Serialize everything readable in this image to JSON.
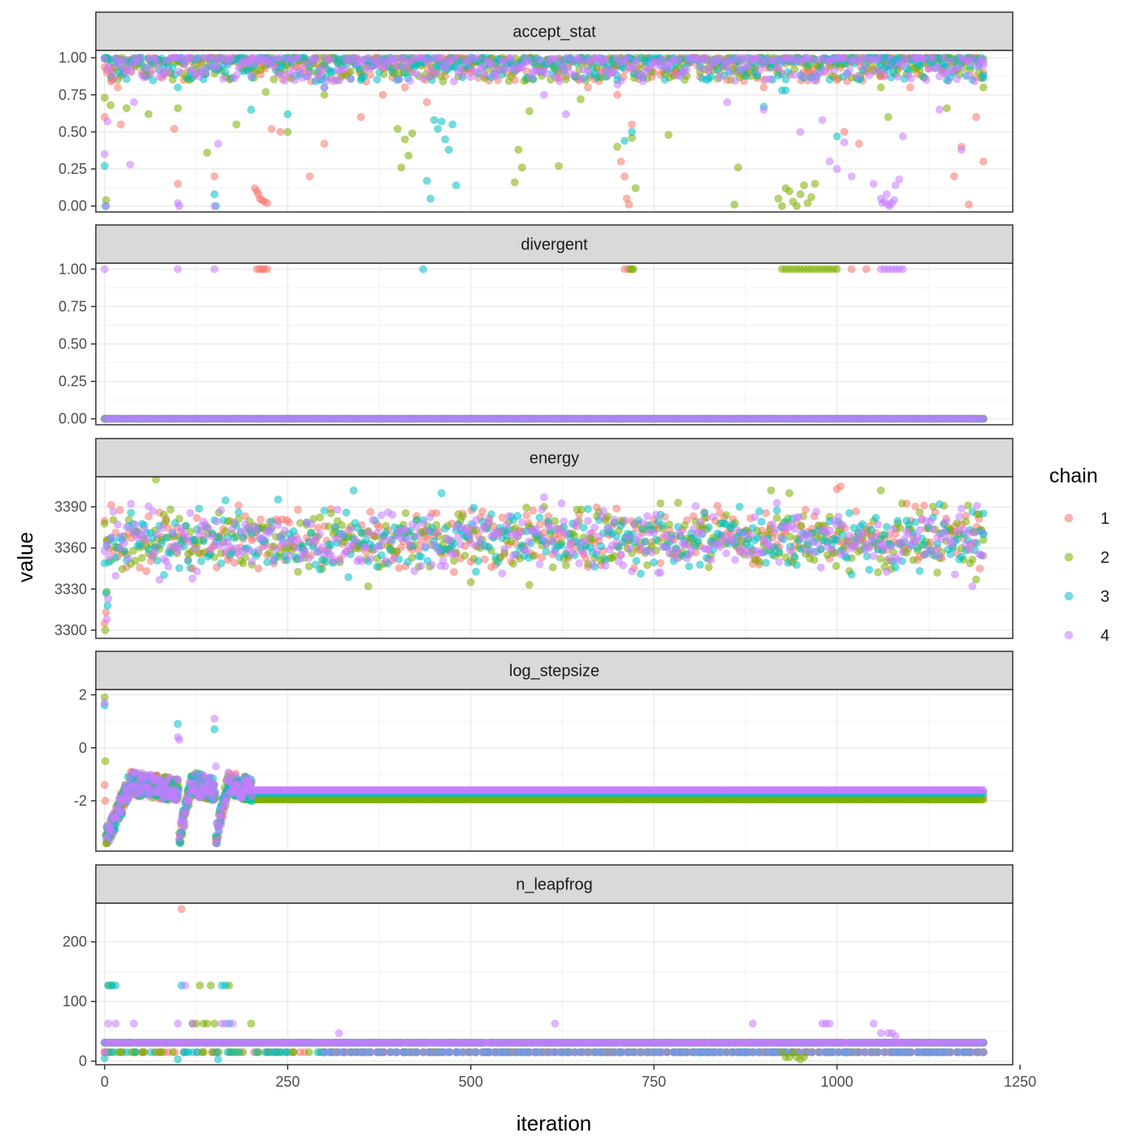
{
  "chart_data": {
    "type": "scatter",
    "title": "",
    "xlabel": "iteration",
    "ylabel": "value",
    "xlim": [
      -12,
      1240
    ],
    "x_ticks": [
      0,
      250,
      500,
      750,
      1000,
      1250
    ],
    "x_tick_labels": [
      "0",
      "250",
      "500",
      "750",
      "1000",
      "1250"
    ],
    "grid": true,
    "legend": {
      "title": "chain",
      "placement": "right",
      "entries": [
        {
          "label": "1",
          "color": "#F8766D"
        },
        {
          "label": "2",
          "color": "#7CAE00"
        },
        {
          "label": "3",
          "color": "#00BFC4"
        },
        {
          "label": "4",
          "color": "#C77CFF"
        }
      ]
    },
    "point_alpha": 0.55,
    "panels": [
      {
        "strip": "accept_stat",
        "ylim": [
          -0.04,
          1.05
        ],
        "y_ticks": [
          0,
          0.25,
          0.5,
          0.75,
          1
        ],
        "y_tick_labels": [
          "0.00",
          "0.25",
          "0.50",
          "0.75",
          "1.00"
        ],
        "series": [
          {
            "name": "1",
            "x": [
              0,
              3,
              10,
              18,
              22,
              95,
              100,
              150,
              205,
              208,
              210,
              212,
              215,
              218,
              222,
              228,
              240,
              280,
              300,
              350,
              380,
              410,
              440,
              500,
              560,
              620,
              660,
              700,
              705,
              710,
              713,
              716,
              720,
              780,
              850,
              900,
              960,
              1000,
              1010,
              1030,
              1060,
              1100,
              1160,
              1170,
              1180,
              1190,
              1200
            ],
            "y": [
              0.6,
              0.9,
              0.85,
              0.8,
              0.55,
              0.52,
              0.15,
              0.2,
              0.12,
              0.1,
              0.08,
              0.05,
              0.04,
              0.03,
              0.02,
              0.52,
              0.5,
              0.2,
              0.42,
              0.6,
              0.75,
              0.8,
              0.7,
              0.9,
              0.85,
              0.9,
              0.8,
              0.75,
              0.3,
              0.2,
              0.05,
              0.01,
              0.55,
              0.9,
              0.85,
              0.8,
              0.9,
              0.85,
              0.5,
              0.42,
              0.88,
              0.8,
              0.2,
              0.4,
              0.01,
              0.6,
              0.3
            ]
          },
          {
            "name": "2",
            "x": [
              0,
              2,
              8,
              30,
              60,
              100,
              140,
              180,
              220,
              250,
              300,
              400,
              405,
              410,
              415,
              420,
              560,
              565,
              570,
              580,
              620,
              650,
              700,
              720,
              725,
              770,
              860,
              865,
              920,
              925,
              930,
              935,
              940,
              945,
              950,
              955,
              960,
              965,
              970,
              1060,
              1070,
              1150,
              1200
            ],
            "y": [
              0.73,
              0.04,
              0.68,
              0.66,
              0.62,
              0.66,
              0.36,
              0.55,
              0.77,
              0.5,
              0.75,
              0.52,
              0.26,
              0.45,
              0.34,
              0.49,
              0.16,
              0.38,
              0.26,
              0.64,
              0.27,
              0.72,
              0.4,
              0.46,
              0.12,
              0.48,
              0.01,
              0.26,
              0.05,
              0.0,
              0.12,
              0.1,
              0.03,
              0.0,
              0.08,
              0.14,
              0.02,
              0.06,
              0.15,
              0.8,
              0.6,
              0.66,
              0.8
            ]
          },
          {
            "name": "3",
            "x": [
              0,
              1,
              20,
              100,
              150,
              152,
              200,
              250,
              300,
              350,
              440,
              445,
              450,
              455,
              460,
              465,
              470,
              475,
              480,
              700,
              710,
              720,
              900,
              920,
              925,
              930,
              1000,
              1060,
              1065,
              1070,
              1075,
              1080,
              1150,
              1200
            ],
            "y": [
              0.27,
              0.0,
              0.9,
              0.8,
              0.08,
              0.0,
              0.65,
              0.62,
              0.8,
              0.85,
              0.17,
              0.05,
              0.58,
              0.52,
              0.57,
              0.45,
              0.38,
              0.55,
              0.14,
              0.85,
              0.44,
              0.5,
              0.67,
              0.88,
              0.78,
              0.78,
              0.47,
              0.95,
              1.0,
              0.92,
              0.97,
              0.99,
              0.85,
              0.88
            ]
          },
          {
            "name": "4",
            "x": [
              0,
              2,
              4,
              35,
              40,
              100,
              102,
              150,
              155,
              200,
              260,
              300,
              420,
              500,
              600,
              630,
              680,
              700,
              850,
              900,
              950,
              980,
              990,
              1000,
              1010,
              1020,
              1050,
              1060,
              1062,
              1065,
              1068,
              1070,
              1072,
              1075,
              1078,
              1080,
              1085,
              1090,
              1140,
              1150,
              1170,
              1200
            ],
            "y": [
              0.35,
              0.0,
              0.57,
              0.28,
              0.7,
              0.02,
              0.0,
              0.0,
              0.42,
              0.88,
              0.85,
              0.8,
              0.9,
              0.87,
              0.75,
              0.62,
              0.9,
              0.82,
              0.7,
              0.65,
              0.5,
              0.58,
              0.3,
              0.25,
              0.43,
              0.2,
              0.15,
              0.05,
              0.02,
              0.03,
              0.08,
              0.01,
              0.0,
              0.02,
              0.04,
              0.14,
              0.18,
              0.47,
              0.65,
              0.9,
              0.38,
              0.95
            ]
          }
        ],
        "bulk_band": [
          0.84,
          1.0
        ]
      },
      {
        "strip": "divergent",
        "ylim": [
          -0.04,
          1.04
        ],
        "y_ticks": [
          0,
          0.25,
          0.5,
          0.75,
          1
        ],
        "y_tick_labels": [
          "0.00",
          "0.25",
          "0.50",
          "0.75",
          "1.00"
        ],
        "series": [
          {
            "name": "1",
            "x": [
              208,
              212,
              215,
              218,
              222,
              710,
              715,
              1020,
              1040
            ],
            "y": [
              1,
              1,
              1,
              1,
              1,
              1,
              1,
              1,
              1
            ]
          },
          {
            "name": "2",
            "x": [
              718,
              720,
              722,
              925,
              930,
              935,
              940,
              945,
              950,
              955,
              960,
              965,
              970,
              975,
              980,
              985,
              990,
              995,
              1000
            ],
            "y": [
              1,
              1,
              1,
              1,
              1,
              1,
              1,
              1,
              1,
              1,
              1,
              1,
              1,
              1,
              1,
              1,
              1,
              1,
              1
            ]
          },
          {
            "name": "3",
            "x": [
              435
            ],
            "y": [
              1
            ]
          },
          {
            "name": "4",
            "x": [
              0,
              100,
              150,
              1060,
              1065,
              1070,
              1075,
              1080,
              1085,
              1090
            ],
            "y": [
              1,
              1,
              1,
              1,
              1,
              1,
              1,
              1,
              1,
              1
            ]
          }
        ],
        "zero_line": [
          0,
          1200
        ]
      },
      {
        "strip": "energy",
        "ylim": [
          3294,
          3412
        ],
        "y_ticks": [
          3300,
          3330,
          3360,
          3390
        ],
        "y_tick_labels": [
          "3300",
          "3330",
          "3360",
          "3390"
        ],
        "series": [
          {
            "name": "1",
            "x": [
              0,
              2,
              120,
              210,
              500,
              1000,
              1005,
              1195
            ],
            "y": [
              3305,
              3313,
              3345,
              3345,
              3350,
              3403,
              3405,
              3345
            ]
          },
          {
            "name": "2",
            "x": [
              1,
              3,
              70,
              360,
              500,
              580,
              910,
              935,
              1060,
              1190
            ],
            "y": [
              3300,
              3328,
              3410,
              3332,
              3335,
              3333,
              3402,
              3400,
              3402,
              3337
            ]
          },
          {
            "name": "3",
            "x": [
              2,
              4,
              340,
              460,
              1200
            ],
            "y": [
              3327,
              3318,
              3402,
              3400,
              3370
            ]
          },
          {
            "name": "4",
            "x": [
              3,
              5,
              600,
              1185
            ],
            "y": [
              3308,
              3323,
              3397,
              3332
            ]
          }
        ],
        "bulk_band": [
          3342,
          3390
        ]
      },
      {
        "strip": "log_stepsize",
        "ylim": [
          -3.9,
          2.2
        ],
        "y_ticks": [
          -2,
          0,
          2
        ],
        "y_tick_labels": [
          "-2",
          "0",
          "2"
        ],
        "series": [
          {
            "name": "1",
            "x": [
              0,
              1
            ],
            "y": [
              -1.4,
              -2.0
            ]
          },
          {
            "name": "2",
            "x": [
              0,
              1,
              2
            ],
            "y": [
              1.9,
              -0.5,
              -3.6
            ]
          },
          {
            "name": "3",
            "x": [
              0,
              100,
              150
            ],
            "y": [
              1.6,
              0.9,
              0.7
            ]
          },
          {
            "name": "4",
            "x": [
              0,
              100,
              102,
              150,
              152
            ],
            "y": [
              1.7,
              0.4,
              0.3,
              1.1,
              -0.7
            ]
          }
        ],
        "warmup_windows": [
          [
            0,
            100
          ],
          [
            100,
            150
          ],
          [
            150,
            200
          ]
        ],
        "steady_values": {
          "1": -1.85,
          "2": -1.95,
          "3": -1.7,
          "4": -1.6
        }
      },
      {
        "strip": "n_leapfrog",
        "ylim": [
          -6,
          265
        ],
        "y_ticks": [
          0,
          100,
          200
        ],
        "y_tick_labels": [
          "0",
          "100",
          "200"
        ],
        "series": [
          {
            "name": "1",
            "x": [
              105,
              0
            ],
            "y": [
              255,
              15
            ]
          },
          {
            "name": "2",
            "x": [
              5,
              10,
              120,
              125,
              130,
              135,
              140,
              145,
              150,
              170,
              200,
              925,
              930,
              935,
              940,
              945,
              950,
              955
            ],
            "y": [
              127,
              127,
              63,
              63,
              127,
              63,
              63,
              127,
              63,
              127,
              63,
              15,
              7,
              7,
              15,
              7,
              3,
              7
            ]
          },
          {
            "name": "3",
            "x": [
              0,
              5,
              10,
              15,
              100,
              105,
              155,
              160,
              165,
              170
            ],
            "y": [
              5,
              127,
              127,
              127,
              3,
              127,
              3,
              127,
              127,
              63
            ]
          },
          {
            "name": "4",
            "x": [
              0,
              5,
              15,
              40,
              100,
              110,
              120,
              160,
              165,
              175,
              320,
              615,
              885,
              980,
              985,
              990,
              1050,
              1060,
              1070,
              1075,
              1080
            ],
            "y": [
              15,
              63,
              63,
              63,
              63,
              127,
              63,
              63,
              63,
              63,
              47,
              63,
              63,
              63,
              63,
              63,
              63,
              47,
              47,
              47,
              42
            ]
          }
        ],
        "bulk_levels": [
          15,
          31
        ]
      }
    ]
  }
}
